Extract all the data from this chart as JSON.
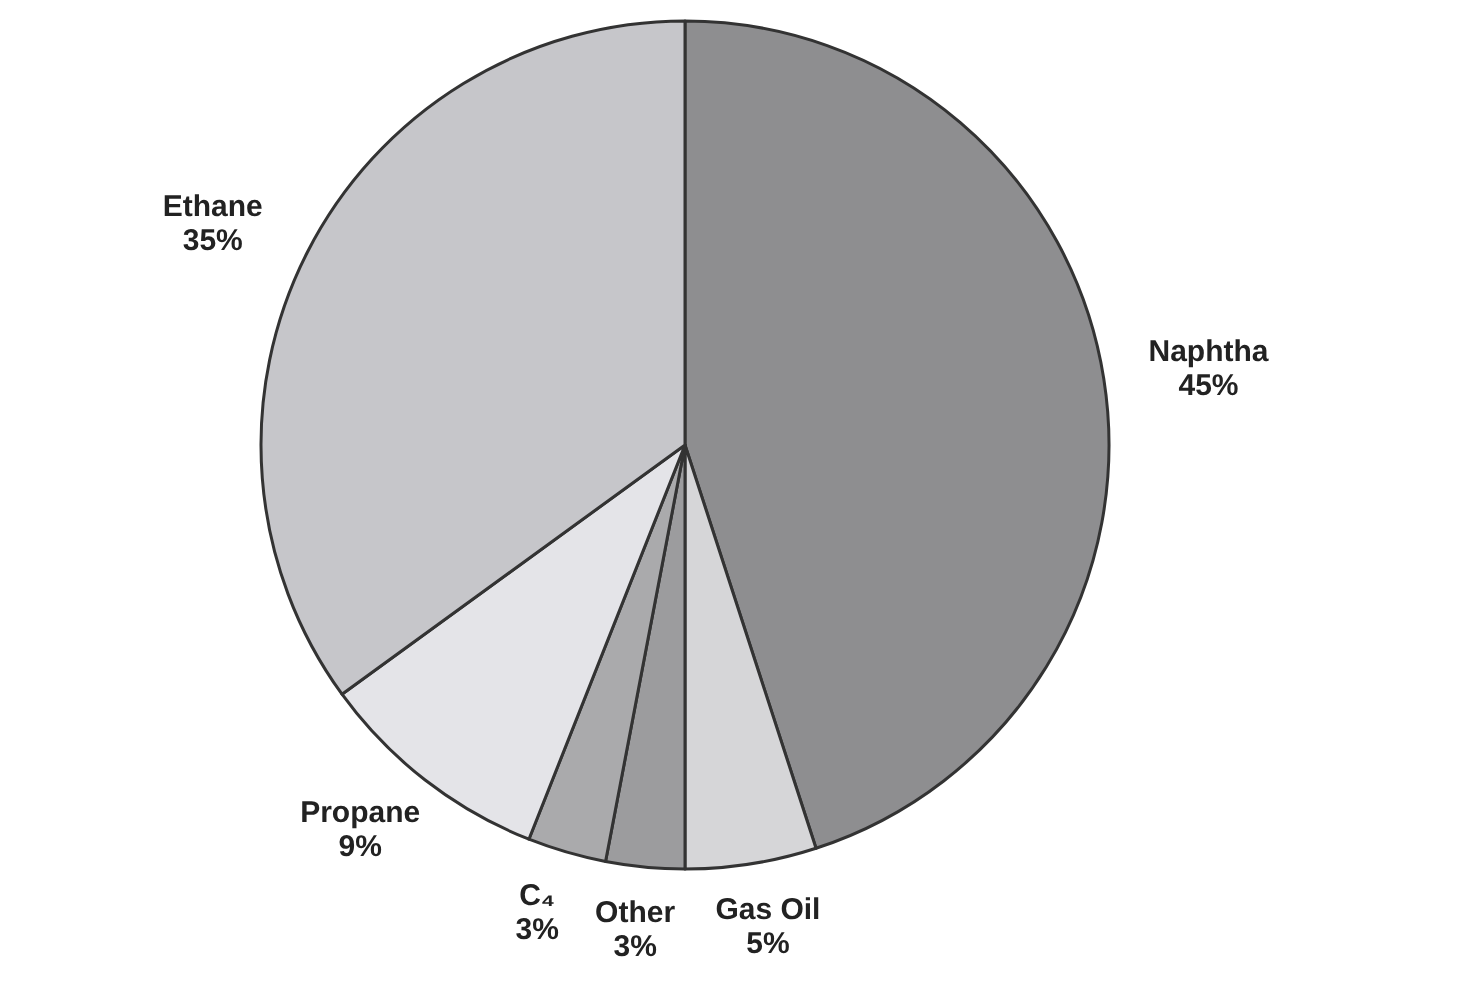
{
  "chart_data": {
    "type": "pie",
    "categories": [
      "Naphtha",
      "Gas Oil",
      "Other",
      "C₄",
      "Propane",
      "Ethane"
    ],
    "values": [
      45,
      5,
      3,
      3,
      9,
      35
    ],
    "value_labels": [
      "45%",
      "5%",
      "3%",
      "3%",
      "9%",
      "35%"
    ],
    "colors": [
      "#8e8e90",
      "#d6d6d8",
      "#9c9c9e",
      "#aaaaac",
      "#e4e4e8",
      "#c6c6ca"
    ]
  }
}
